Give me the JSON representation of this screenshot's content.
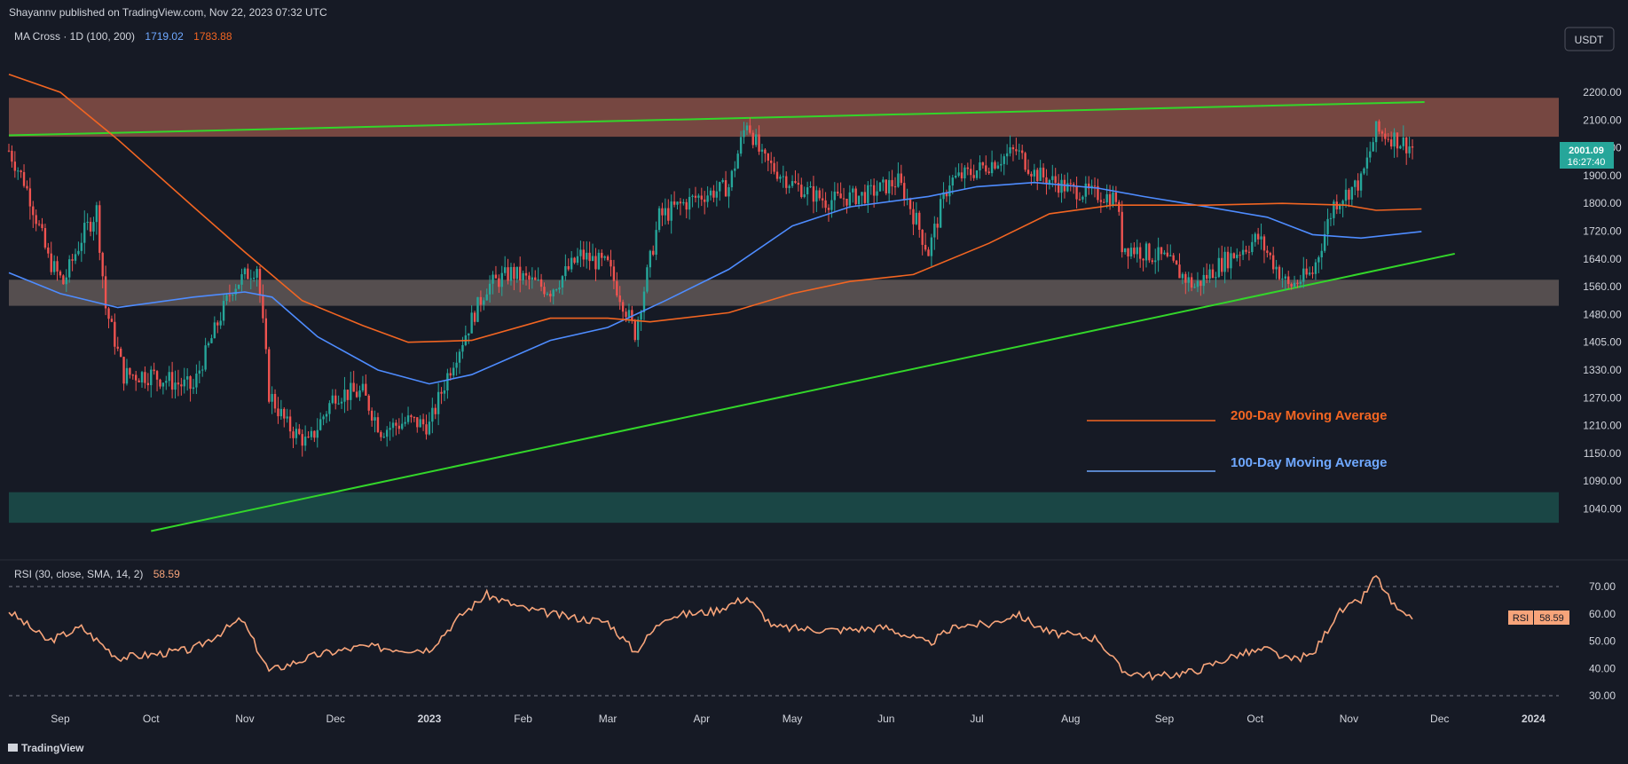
{
  "header": {
    "published": "Shayannv published on TradingView.com, Nov 22, 2023 07:32 UTC",
    "ma_title": "MA Cross · 1D (100, 200)",
    "ma100_value": "1719.02",
    "ma200_value": "1783.88",
    "currency_button": "USDT"
  },
  "price_badge": {
    "price": "2001.09",
    "countdown": "16:27:40"
  },
  "rsi": {
    "title": "RSI (30, close, SMA, 14, 2)",
    "value": "58.59",
    "badge_label": "RSI",
    "badge_value": "58.59"
  },
  "footer": {
    "brand": "TradingView"
  },
  "legend": [
    {
      "name": "200-Day Moving Average",
      "color": "#f26522"
    },
    {
      "name": "100-Day Moving Average",
      "color": "#6fa8ff"
    }
  ],
  "colors": {
    "background": "#161a25",
    "up": "#26a69a",
    "down": "#ef5350",
    "ma100": "#4e8cff",
    "ma200": "#f26522",
    "trendline": "#33d62a",
    "rsi": "#f7a47a"
  },
  "chart_data": [
    {
      "type": "candlestick",
      "price_axis_ticks": [
        "2200.00",
        "2100.00",
        "2000.00",
        "1900.00",
        "1800.00",
        "1720.00",
        "1640.00",
        "1560.00",
        "1480.00",
        "1405.00",
        "1330.00",
        "1270.00",
        "1210.00",
        "1150.00",
        "1090.00",
        "1040.00"
      ],
      "time_axis_labels": [
        "Sep",
        "Oct",
        "Nov",
        "Dec",
        "2023",
        "Feb",
        "Mar",
        "Apr",
        "May",
        "Jun",
        "Jul",
        "Aug",
        "Sep",
        "Oct",
        "Nov",
        "Dec",
        "2024"
      ],
      "zones": [
        {
          "name": "resistance",
          "from": 2040,
          "to": 2180,
          "color": "#c76d5a"
        },
        {
          "name": "support",
          "from": 1505,
          "to": 1580,
          "color": "#8a7a72"
        },
        {
          "name": "demand",
          "from": 1015,
          "to": 1070,
          "color": "#1f6b60"
        }
      ],
      "trendlines": [
        {
          "name": "upper",
          "points": [
            [
              "2022-08-15",
              2045
            ],
            [
              "2023-11-26",
              2165
            ]
          ]
        },
        {
          "name": "lower",
          "points": [
            [
              "2022-10-01",
              1000
            ],
            [
              "2023-12-06",
              1655
            ]
          ]
        }
      ],
      "moving_averages": [
        {
          "name": "MA 100",
          "points": [
            [
              "2022-08-15",
              1600
            ],
            [
              "2022-09-01",
              1540
            ],
            [
              "2022-09-20",
              1500
            ],
            [
              "2022-10-15",
              1530
            ],
            [
              "2022-11-01",
              1545
            ],
            [
              "2022-11-10",
              1530
            ],
            [
              "2022-11-25",
              1420
            ],
            [
              "2022-12-15",
              1330
            ],
            [
              "2023-01-01",
              1300
            ],
            [
              "2023-01-15",
              1320
            ],
            [
              "2023-02-10",
              1410
            ],
            [
              "2023-03-01",
              1445
            ],
            [
              "2023-03-20",
              1520
            ],
            [
              "2023-04-10",
              1610
            ],
            [
              "2023-05-01",
              1735
            ],
            [
              "2023-05-20",
              1790
            ],
            [
              "2023-06-15",
              1825
            ],
            [
              "2023-07-01",
              1860
            ],
            [
              "2023-07-20",
              1875
            ],
            [
              "2023-08-10",
              1855
            ],
            [
              "2023-08-25",
              1825
            ],
            [
              "2023-09-15",
              1790
            ],
            [
              "2023-10-05",
              1760
            ],
            [
              "2023-10-20",
              1710
            ],
            [
              "2023-11-05",
              1700
            ],
            [
              "2023-11-25",
              1719
            ]
          ]
        },
        {
          "name": "MA 200",
          "points": [
            [
              "2022-08-15",
              2265
            ],
            [
              "2022-09-01",
              2200
            ],
            [
              "2022-09-20",
              2030
            ],
            [
              "2022-10-15",
              1790
            ],
            [
              "2022-11-01",
              1660
            ],
            [
              "2022-11-20",
              1520
            ],
            [
              "2022-12-10",
              1450
            ],
            [
              "2022-12-25",
              1405
            ],
            [
              "2023-01-15",
              1410
            ],
            [
              "2023-02-10",
              1470
            ],
            [
              "2023-03-01",
              1470
            ],
            [
              "2023-03-15",
              1460
            ],
            [
              "2023-04-10",
              1485
            ],
            [
              "2023-05-01",
              1540
            ],
            [
              "2023-05-20",
              1575
            ],
            [
              "2023-06-10",
              1595
            ],
            [
              "2023-07-05",
              1685
            ],
            [
              "2023-07-25",
              1770
            ],
            [
              "2023-08-15",
              1795
            ],
            [
              "2023-09-15",
              1795
            ],
            [
              "2023-10-10",
              1800
            ],
            [
              "2023-10-31",
              1795
            ],
            [
              "2023-11-10",
              1780
            ],
            [
              "2023-11-25",
              1784
            ]
          ]
        }
      ],
      "price_path": [
        [
          "2022-08-15",
          1990
        ],
        [
          "2022-08-20",
          1880
        ],
        [
          "2022-08-28",
          1640
        ],
        [
          "2022-09-02",
          1570
        ],
        [
          "2022-09-08",
          1700
        ],
        [
          "2022-09-13",
          1780
        ],
        [
          "2022-09-16",
          1500
        ],
        [
          "2022-09-22",
          1320
        ],
        [
          "2022-10-01",
          1320
        ],
        [
          "2022-10-15",
          1290
        ],
        [
          "2022-10-28",
          1560
        ],
        [
          "2022-11-05",
          1620
        ],
        [
          "2022-11-09",
          1280
        ],
        [
          "2022-11-15",
          1210
        ],
        [
          "2022-11-22",
          1170
        ],
        [
          "2022-12-01",
          1280
        ],
        [
          "2022-12-10",
          1280
        ],
        [
          "2022-12-16",
          1200
        ],
        [
          "2022-12-25",
          1220
        ],
        [
          "2023-01-01",
          1210
        ],
        [
          "2023-01-12",
          1410
        ],
        [
          "2023-01-20",
          1560
        ],
        [
          "2023-01-28",
          1600
        ],
        [
          "2023-02-10",
          1550
        ],
        [
          "2023-02-20",
          1650
        ],
        [
          "2023-03-01",
          1620
        ],
        [
          "2023-03-10",
          1430
        ],
        [
          "2023-03-18",
          1760
        ],
        [
          "2023-03-30",
          1820
        ],
        [
          "2023-04-10",
          1860
        ],
        [
          "2023-04-16",
          2100
        ],
        [
          "2023-04-21",
          1960
        ],
        [
          "2023-05-01",
          1870
        ],
        [
          "2023-05-12",
          1810
        ],
        [
          "2023-05-25",
          1830
        ],
        [
          "2023-06-05",
          1880
        ],
        [
          "2023-06-15",
          1660
        ],
        [
          "2023-06-22",
          1880
        ],
        [
          "2023-07-01",
          1920
        ],
        [
          "2023-07-14",
          1990
        ],
        [
          "2023-07-20",
          1910
        ],
        [
          "2023-08-01",
          1850
        ],
        [
          "2023-08-16",
          1820
        ],
        [
          "2023-08-18",
          1680
        ],
        [
          "2023-09-01",
          1640
        ],
        [
          "2023-09-11",
          1560
        ],
        [
          "2023-09-20",
          1630
        ],
        [
          "2023-10-02",
          1700
        ],
        [
          "2023-10-12",
          1560
        ],
        [
          "2023-10-20",
          1600
        ],
        [
          "2023-10-27",
          1800
        ],
        [
          "2023-11-05",
          1880
        ],
        [
          "2023-11-10",
          2060
        ],
        [
          "2023-11-15",
          2040
        ],
        [
          "2023-11-22",
          2001
        ]
      ]
    },
    {
      "type": "line",
      "name": "RSI",
      "y_axis_ticks": [
        "70.00",
        "60.00",
        "50.00",
        "40.00",
        "30.00"
      ],
      "bands": [
        70,
        30
      ],
      "points": [
        [
          "2022-08-15",
          61
        ],
        [
          "2022-08-28",
          50
        ],
        [
          "2022-09-08",
          55
        ],
        [
          "2022-09-20",
          44
        ],
        [
          "2022-10-01",
          45
        ],
        [
          "2022-10-15",
          47
        ],
        [
          "2022-10-31",
          58
        ],
        [
          "2022-11-09",
          39
        ],
        [
          "2022-11-25",
          45
        ],
        [
          "2022-12-10",
          48
        ],
        [
          "2022-12-25",
          47
        ],
        [
          "2023-01-01",
          47
        ],
        [
          "2023-01-12",
          60
        ],
        [
          "2023-01-20",
          67
        ],
        [
          "2023-02-01",
          62
        ],
        [
          "2023-02-15",
          59
        ],
        [
          "2023-03-01",
          57
        ],
        [
          "2023-03-10",
          46
        ],
        [
          "2023-03-20",
          59
        ],
        [
          "2023-04-05",
          61
        ],
        [
          "2023-04-16",
          66
        ],
        [
          "2023-04-25",
          55
        ],
        [
          "2023-05-15",
          54
        ],
        [
          "2023-06-01",
          55
        ],
        [
          "2023-06-15",
          49
        ],
        [
          "2023-06-25",
          56
        ],
        [
          "2023-07-05",
          56
        ],
        [
          "2023-07-14",
          60
        ],
        [
          "2023-07-25",
          53
        ],
        [
          "2023-08-10",
          51
        ],
        [
          "2023-08-18",
          39
        ],
        [
          "2023-08-30",
          37
        ],
        [
          "2023-09-11",
          39
        ],
        [
          "2023-09-25",
          45
        ],
        [
          "2023-10-05",
          47
        ],
        [
          "2023-10-12",
          43
        ],
        [
          "2023-10-20",
          45
        ],
        [
          "2023-10-28",
          60
        ],
        [
          "2023-11-05",
          65
        ],
        [
          "2023-11-10",
          74
        ],
        [
          "2023-11-15",
          64
        ],
        [
          "2023-11-20",
          58
        ],
        [
          "2023-11-22",
          59
        ]
      ]
    }
  ]
}
